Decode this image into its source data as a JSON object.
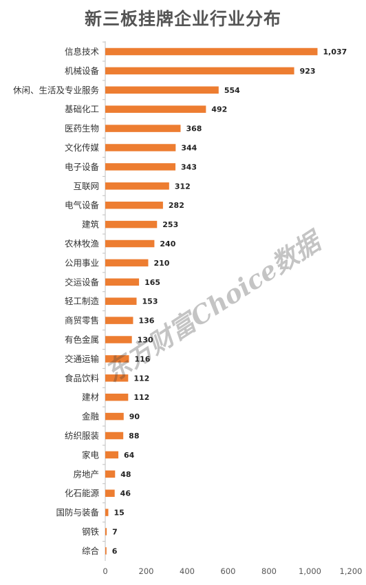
{
  "chart_data": {
    "type": "bar",
    "orientation": "horizontal",
    "title": "新三板挂牌企业行业分布",
    "categories": [
      "信息技术",
      "机械设备",
      "休闲、生活及专业服务",
      "基础化工",
      "医药生物",
      "文化传媒",
      "电子设备",
      "互联网",
      "电气设备",
      "建筑",
      "农林牧渔",
      "公用事业",
      "交运设备",
      "轻工制造",
      "商贸零售",
      "有色金属",
      "交通运输",
      "食品饮料",
      "建材",
      "金融",
      "纺织服装",
      "家电",
      "房地产",
      "化石能源",
      "国防与装备",
      "钢铁",
      "综合"
    ],
    "values": [
      1037,
      923,
      554,
      492,
      368,
      344,
      343,
      312,
      282,
      253,
      240,
      210,
      165,
      153,
      136,
      130,
      116,
      112,
      112,
      90,
      88,
      64,
      48,
      46,
      15,
      7,
      6
    ],
    "value_labels": [
      "1,037",
      "923",
      "554",
      "492",
      "368",
      "344",
      "343",
      "312",
      "282",
      "253",
      "240",
      "210",
      "165",
      "153",
      "136",
      "130",
      "116",
      "112",
      "112",
      "90",
      "88",
      "64",
      "48",
      "46",
      "15",
      "7",
      "6"
    ],
    "xlim": [
      0,
      1200
    ],
    "xticks": [
      "0",
      "200",
      "400",
      "600",
      "800",
      "1,000",
      "1,200"
    ],
    "xlabel": "",
    "ylabel": "",
    "grid": false,
    "legend": "none",
    "bar_color": "#ED7D31"
  },
  "watermark": "东方财富Choice数据"
}
